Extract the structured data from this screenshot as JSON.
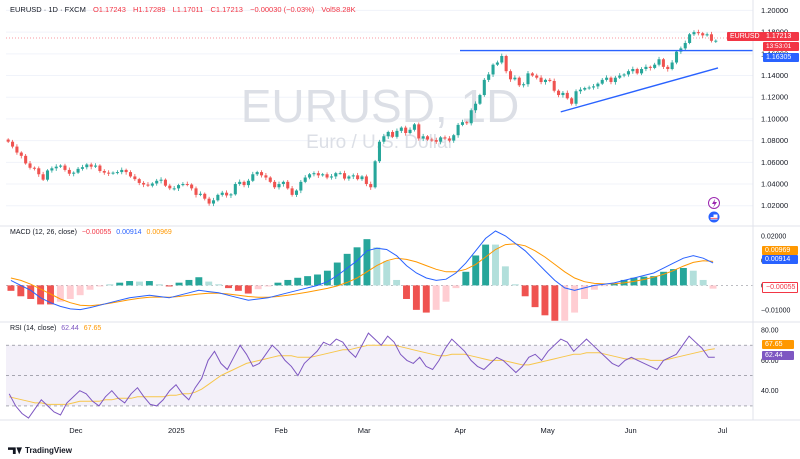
{
  "header": {
    "symbol": "EURUSD · 1D · FXCM",
    "open": "O1.17243",
    "high": "H1.17289",
    "low": "L1.17011",
    "close": "C1.17213",
    "change": "−0.00030 (−0.03%)",
    "vol": "Vol58.28K"
  },
  "watermark": {
    "symbol": "EURUSD, 1D",
    "name": "Euro / U.S. Dollar"
  },
  "price_badges": {
    "symbol": "EURUSD",
    "price": "1.17213",
    "countdown": "13:53:01",
    "level": "1.16305"
  },
  "macd_title": {
    "label": "MACD (12, 26, close)",
    "hist": "−0.00055",
    "macd": "0.00914",
    "signal": "0.00969"
  },
  "macd_badges": {
    "signal": "0.00969",
    "macd": "0.00914",
    "hist": "−0.00055"
  },
  "rsi_title": {
    "label": "RSI (14, close)",
    "rsi": "62.44",
    "ma": "67.65"
  },
  "rsi_badges": {
    "ma": "67.65",
    "rsi": "62.44"
  },
  "branding": "TradingView",
  "colors": {
    "up": "#26a69a",
    "down": "#ef5350",
    "macd": "#2962ff",
    "signal": "#ff9800",
    "rsi": "#7e57c2",
    "trend": "#2962ff"
  },
  "chart_data": [
    {
      "type": "candlestick",
      "title": "EURUSD · 1D · FXCM",
      "x_ticks": [
        "Dec",
        "2025",
        "Feb",
        "Mar",
        "Apr",
        "May",
        "Jun",
        "Jul"
      ],
      "y_ticks": [
        "1.20000",
        "1.18000",
        "1.16000",
        "1.14000",
        "1.12000",
        "1.10000",
        "1.08000",
        "1.06000",
        "1.04000",
        "1.02000"
      ],
      "ylim": [
        1.005,
        1.205
      ],
      "close": [
        1.079,
        1.0745,
        1.069,
        1.066,
        1.059,
        1.055,
        1.0545,
        1.049,
        1.044,
        1.0525,
        1.0545,
        1.056,
        1.057,
        1.053,
        1.0495,
        1.0505,
        1.054,
        1.0555,
        1.058,
        1.056,
        1.057,
        1.052,
        1.0505,
        1.0498,
        1.0505,
        1.051,
        1.053,
        1.051,
        1.047,
        1.0445,
        1.041,
        1.0395,
        1.0385,
        1.0405,
        1.043,
        1.044,
        1.0385,
        1.036,
        1.036,
        1.039,
        1.04,
        1.0395,
        1.036,
        1.03,
        1.031,
        1.0265,
        1.022,
        1.025,
        1.03,
        1.032,
        1.0295,
        1.0305,
        1.04,
        1.042,
        1.039,
        1.043,
        1.049,
        1.051,
        1.048,
        1.046,
        1.042,
        1.037,
        1.04,
        1.042,
        1.036,
        1.03,
        1.034,
        1.042,
        1.046,
        1.049,
        1.05,
        1.048,
        1.049,
        1.046,
        1.047,
        1.05,
        1.05,
        1.045,
        1.047,
        1.048,
        1.0445,
        1.047,
        1.04,
        1.037,
        1.061,
        1.079,
        1.084,
        1.088,
        1.0835,
        1.089,
        1.092,
        1.087,
        1.09,
        1.095,
        1.082,
        1.084,
        1.081,
        1.0805,
        1.079,
        1.083,
        1.082,
        1.08,
        1.085,
        1.0945,
        1.097,
        1.096,
        1.108,
        1.114,
        1.122,
        1.136,
        1.141,
        1.15,
        1.152,
        1.158,
        1.144,
        1.1365,
        1.138,
        1.131,
        1.132,
        1.142,
        1.14,
        1.138,
        1.134,
        1.136,
        1.135,
        1.126,
        1.122,
        1.124,
        1.119,
        1.114,
        1.1255,
        1.127,
        1.1285,
        1.129,
        1.13,
        1.1325,
        1.136,
        1.138,
        1.134,
        1.138,
        1.14,
        1.141,
        1.144,
        1.146,
        1.142,
        1.146,
        1.148,
        1.147,
        1.15,
        1.155,
        1.148,
        1.146,
        1.152,
        1.162,
        1.165,
        1.17,
        1.178,
        1.18,
        1.179,
        1.177,
        1.178,
        1.172,
        1.1721
      ],
      "trend_lines": [
        {
          "from": [
            "Apr",
            1.16305
          ],
          "to": [
            "Jul",
            1.16305
          ]
        },
        {
          "from": [
            "May",
            1.1065
          ],
          "to": [
            "Jun",
            1.147
          ]
        }
      ]
    },
    {
      "type": "line",
      "title": "MACD (12, 26, close)",
      "series": [
        {
          "name": "MACD",
          "values": [
            0.002,
            0.0,
            -0.002,
            -0.005,
            -0.007,
            -0.0085,
            -0.0095,
            -0.0098,
            -0.009,
            -0.008,
            -0.007,
            -0.006,
            -0.005,
            -0.0045,
            -0.004,
            -0.0045,
            -0.005,
            -0.004,
            -0.003,
            -0.002,
            -0.0025,
            -0.003,
            -0.004,
            -0.005,
            -0.006,
            -0.0055,
            -0.005,
            -0.004,
            -0.003,
            -0.002,
            -0.001,
            0.0,
            0.0015,
            0.004,
            0.007,
            0.01,
            0.014,
            0.015,
            0.0145,
            0.012,
            0.008,
            0.005,
            0.003,
            0.002,
            0.0025,
            0.005,
            0.009,
            0.014,
            0.019,
            0.022,
            0.02,
            0.017,
            0.014,
            0.01,
            0.006,
            0.002,
            -0.001,
            -0.002,
            -0.001,
            0.0,
            0.0005,
            0.001,
            0.002,
            0.003,
            0.004,
            0.005,
            0.007,
            0.009,
            0.011,
            0.012,
            0.011,
            0.0091
          ]
        },
        {
          "name": "Signal",
          "values": [
            0.003,
            0.002,
            0.0005,
            -0.0015,
            -0.0035,
            -0.0055,
            -0.007,
            -0.008,
            -0.0082,
            -0.0078,
            -0.0072,
            -0.0065,
            -0.0058,
            -0.0052,
            -0.0048,
            -0.0047,
            -0.0048,
            -0.0045,
            -0.004,
            -0.0035,
            -0.0032,
            -0.0032,
            -0.0035,
            -0.004,
            -0.0045,
            -0.0048,
            -0.0048,
            -0.0045,
            -0.004,
            -0.0034,
            -0.0027,
            -0.002,
            -0.0012,
            -0.0002,
            0.0012,
            0.003,
            0.0055,
            0.008,
            0.01,
            0.011,
            0.0105,
            0.0095,
            0.008,
            0.0065,
            0.0055,
            0.0055,
            0.0065,
            0.0085,
            0.0115,
            0.0145,
            0.0165,
            0.0168,
            0.016,
            0.014,
            0.0115,
            0.0085,
            0.0055,
            0.003,
            0.0015,
            0.0008,
            0.0006,
            0.0007,
            0.001,
            0.0016,
            0.0024,
            0.0033,
            0.0045,
            0.006,
            0.0078,
            0.0093,
            0.01,
            0.0097
          ]
        }
      ],
      "yticks": [
        "0.02000",
        "0.01000",
        "0.00000",
        "−0.01000"
      ],
      "ylim": [
        -0.014,
        0.022
      ]
    },
    {
      "type": "line",
      "title": "RSI (14, close)",
      "series": [
        {
          "name": "RSI",
          "values": [
            38,
            30,
            25,
            22,
            28,
            34,
            30,
            26,
            24,
            32,
            36,
            40,
            38,
            33,
            30,
            36,
            40,
            35,
            32,
            38,
            42,
            36,
            31,
            30,
            34,
            40,
            44,
            38,
            34,
            42,
            48,
            60,
            66,
            58,
            54,
            62,
            70,
            64,
            56,
            58,
            64,
            70,
            66,
            60,
            56,
            50,
            58,
            62,
            66,
            72,
            70,
            74,
            72,
            66,
            62,
            70,
            78,
            74,
            70,
            76,
            72,
            64,
            60,
            58,
            62,
            56,
            54,
            60,
            68,
            74,
            70,
            66,
            60,
            56,
            54,
            58,
            62,
            60,
            56,
            52,
            56,
            62,
            64,
            60,
            66,
            70,
            74,
            72,
            66,
            70,
            74,
            70,
            66,
            62,
            58,
            56,
            60,
            62,
            60,
            58,
            56,
            54,
            60,
            62,
            64,
            70,
            76,
            72,
            68,
            62,
            62
          ]
        },
        {
          "name": "RSI-based MA",
          "values": [
            36,
            35,
            34,
            33,
            32,
            32,
            31,
            31,
            31,
            31,
            32,
            33,
            33,
            33,
            33,
            34,
            34,
            35,
            35,
            35,
            36,
            36,
            36,
            36,
            36,
            37,
            37,
            38,
            38,
            39,
            41,
            44,
            47,
            50,
            52,
            54,
            56,
            58,
            59,
            60,
            61,
            62,
            63,
            63,
            63,
            62,
            62,
            62,
            63,
            64,
            65,
            66,
            67,
            67,
            68,
            69,
            70,
            70,
            70,
            70,
            70,
            69,
            68,
            67,
            66,
            65,
            64,
            63,
            63,
            64,
            64,
            64,
            63,
            62,
            61,
            60,
            60,
            60,
            59,
            58,
            57,
            57,
            58,
            59,
            60,
            61,
            62,
            63,
            64,
            64,
            65,
            65,
            65,
            64,
            63,
            62,
            61,
            61,
            61,
            61,
            60,
            60,
            60,
            61,
            62,
            63,
            64,
            65,
            66,
            67,
            67.65
          ]
        }
      ],
      "yticks": [
        "80.00",
        "60.00",
        "40.00"
      ],
      "ylim": [
        24,
        82
      ]
    }
  ]
}
